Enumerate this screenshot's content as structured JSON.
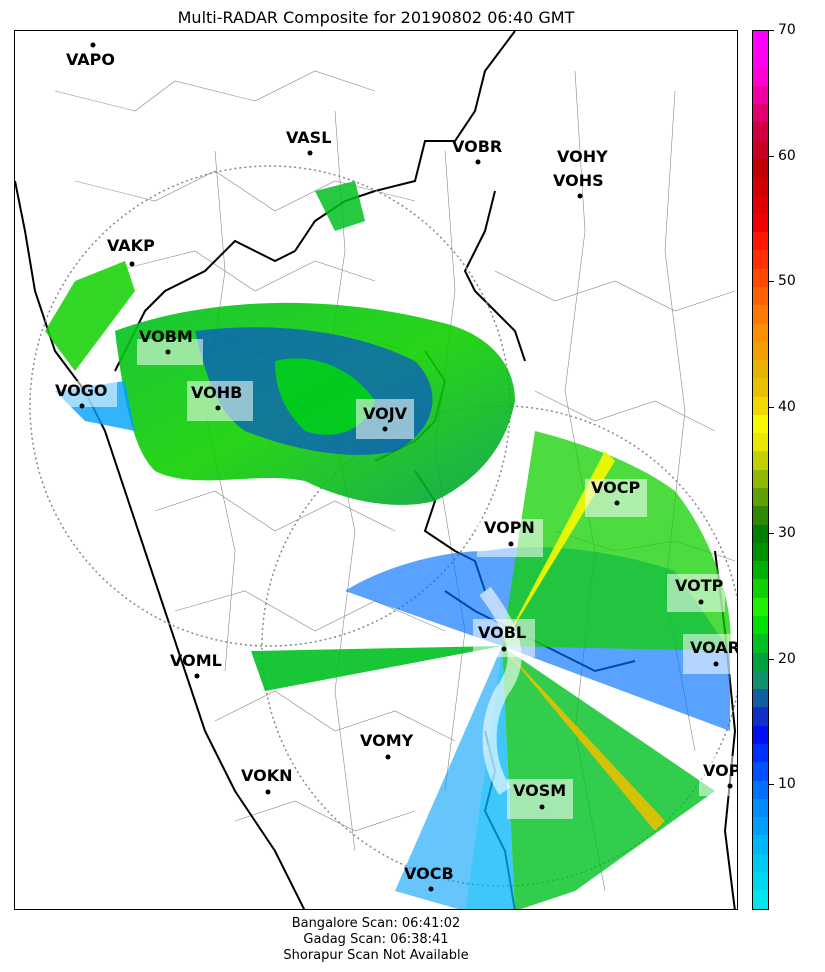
{
  "title": "Multi-RADAR Composite for 20190802 06:40 GMT",
  "stations": [
    {
      "id": "VAPO"
    },
    {
      "id": "VASL"
    },
    {
      "id": "VOBR"
    },
    {
      "id": "VOHY"
    },
    {
      "id": "VOHS"
    },
    {
      "id": "VAKP"
    },
    {
      "id": "VOBM"
    },
    {
      "id": "VOGO"
    },
    {
      "id": "VOHB"
    },
    {
      "id": "VOJV"
    },
    {
      "id": "VOCP"
    },
    {
      "id": "VOPN"
    },
    {
      "id": "VOTP"
    },
    {
      "id": "VOBL"
    },
    {
      "id": "VOAR"
    },
    {
      "id": "VOML"
    },
    {
      "id": "VOMY"
    },
    {
      "id": "VOKN"
    },
    {
      "id": "VOPC"
    },
    {
      "id": "VOSM"
    },
    {
      "id": "VOCB"
    }
  ],
  "colorbar": {
    "min": 0,
    "max": 70,
    "ticks": [
      "10",
      "20",
      "30",
      "40",
      "50",
      "60",
      "70"
    ],
    "colors": [
      "#00e5ee",
      "#00d8f0",
      "#00c8f5",
      "#00b4f8",
      "#00a0fa",
      "#008cfc",
      "#0070ff",
      "#0050ff",
      "#0030ff",
      "#0010f0",
      "#1030c8",
      "#1060a0",
      "#109070",
      "#00a040",
      "#00c020",
      "#00e000",
      "#20f000",
      "#10d000",
      "#00b000",
      "#009000",
      "#008000",
      "#308800",
      "#60a000",
      "#90b800",
      "#c0d000",
      "#e8e800",
      "#f8f800",
      "#f0d800",
      "#e8c000",
      "#e8b000",
      "#f0a000",
      "#f89000",
      "#ff7800",
      "#ff6000",
      "#ff4800",
      "#ff3000",
      "#ff1800",
      "#f00000",
      "#e00000",
      "#d00000",
      "#c00000",
      "#c80020",
      "#d00040",
      "#e00070",
      "#f000a0",
      "#ff00d0",
      "#ff00f0",
      "#ff00ff"
    ]
  },
  "footer": {
    "line1": "Bangalore Scan: 06:41:02",
    "line2": "Gadag Scan: 06:38:41",
    "line3": "Shorapur Scan Not Available"
  }
}
